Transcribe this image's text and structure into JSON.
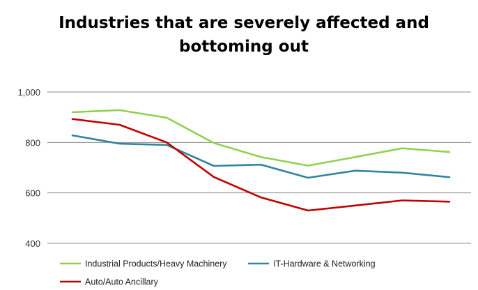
{
  "chart_data": {
    "type": "line",
    "title_lines": [
      "Industries that are severely affected and",
      "bottoming out"
    ],
    "xlabel": "",
    "ylabel": "",
    "ylim": [
      400,
      1000
    ],
    "yticks": [
      400,
      600,
      800,
      1000
    ],
    "ytick_labels": [
      "400",
      "600",
      "800",
      "1,000"
    ],
    "grid": true,
    "legend_position": "bottom",
    "x": [
      1,
      2,
      3,
      4,
      5,
      6,
      7,
      8,
      9
    ],
    "series": [
      {
        "name": "Industrial Products/Heavy Machinery",
        "color": "#92D050",
        "values": [
          920,
          928,
          898,
          798,
          742,
          708,
          742,
          777,
          762
        ]
      },
      {
        "name": "IT-Hardware & Networking",
        "color": "#31859C",
        "values": [
          828,
          795,
          790,
          707,
          712,
          660,
          688,
          680,
          662
        ]
      },
      {
        "name": "Auto/Auto Ancillary",
        "color": "#C00000",
        "values": [
          893,
          870,
          800,
          663,
          582,
          530,
          550,
          570,
          565
        ]
      }
    ]
  }
}
